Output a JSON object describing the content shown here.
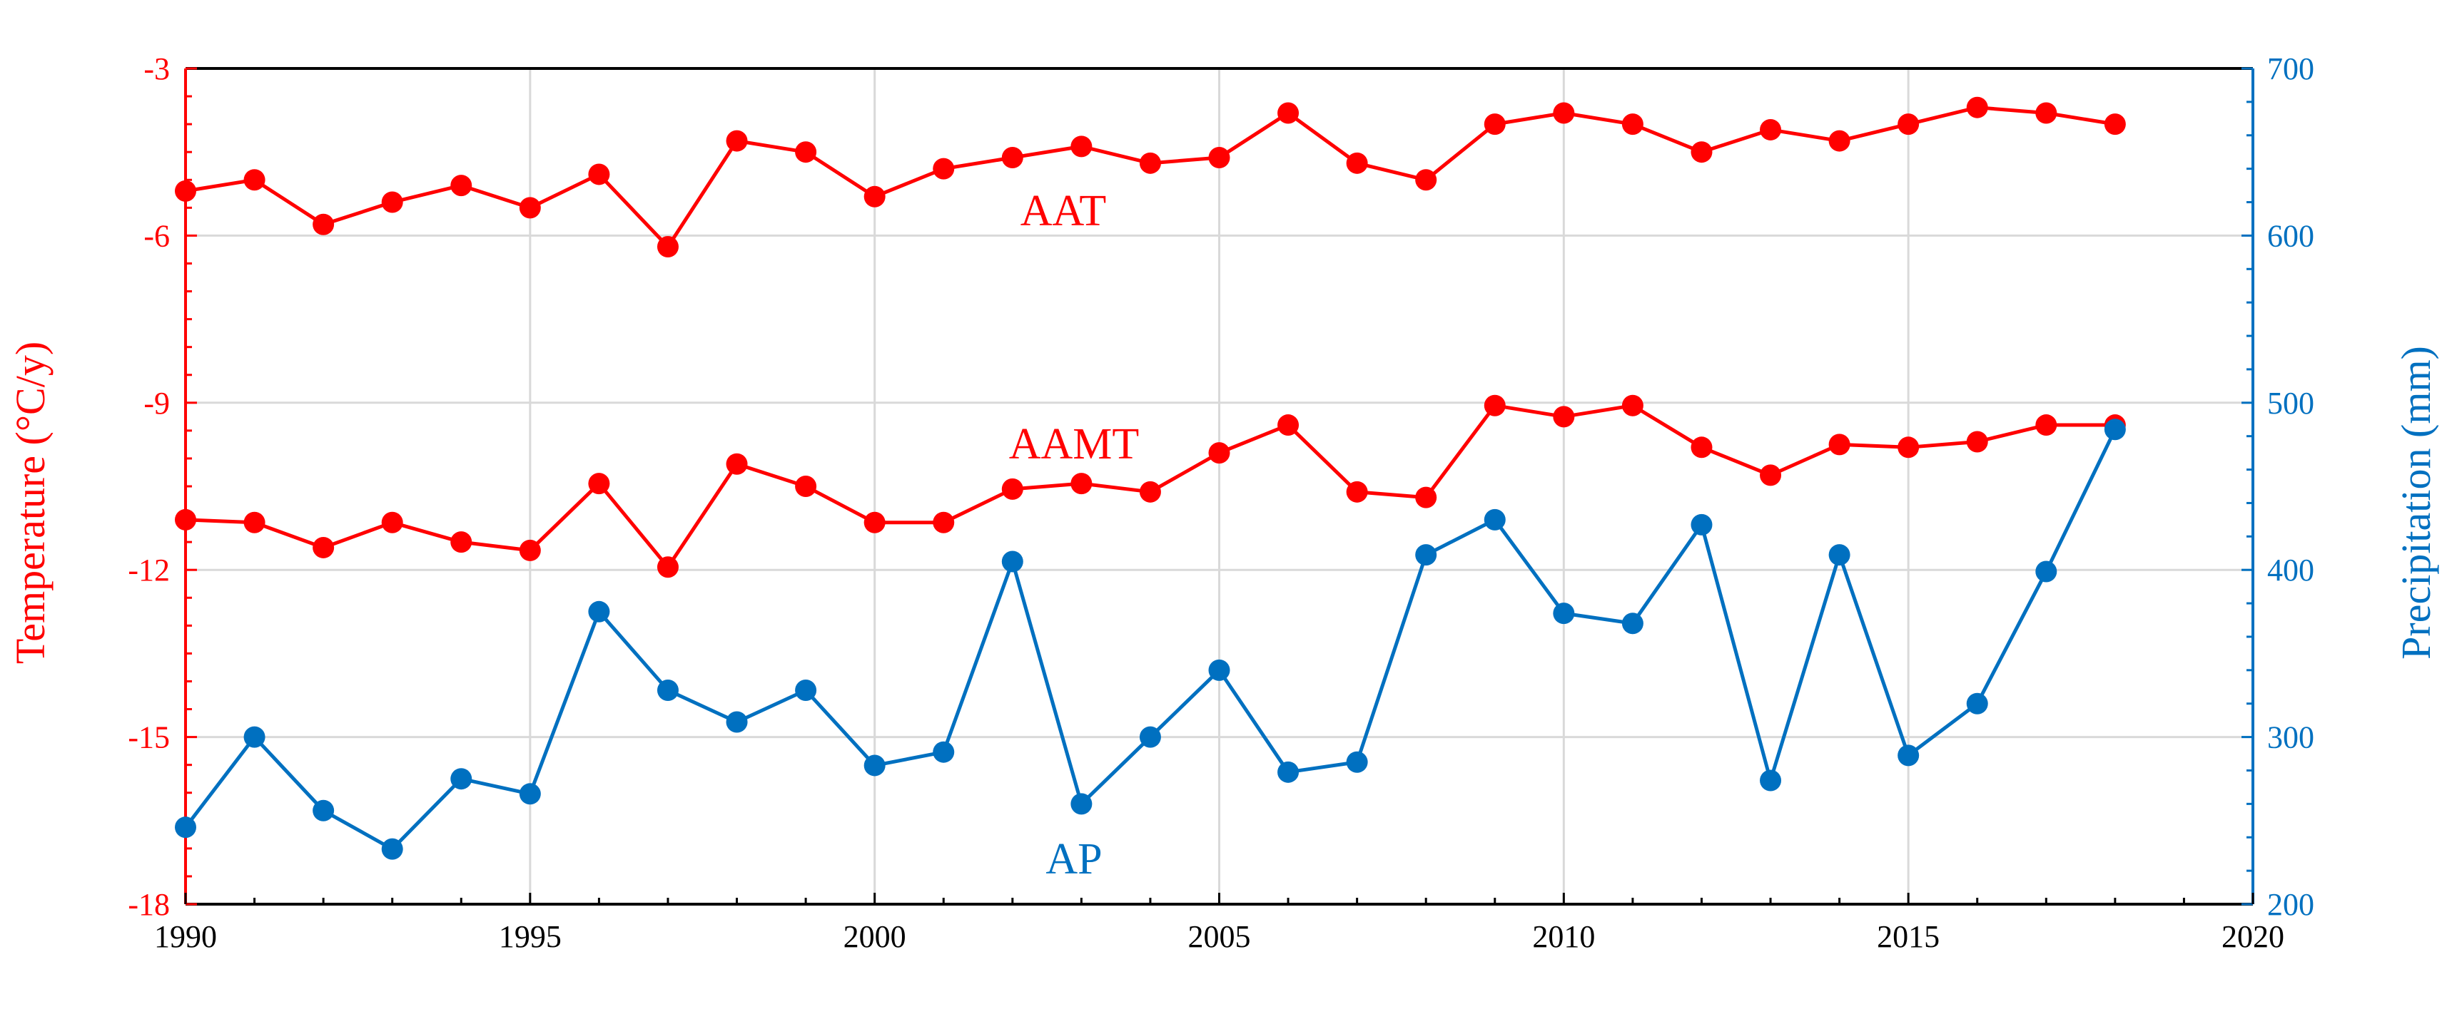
{
  "chart_data": {
    "type": "line",
    "x": [
      1990,
      1991,
      1992,
      1993,
      1994,
      1995,
      1996,
      1997,
      1998,
      1999,
      2000,
      2001,
      2002,
      2003,
      2004,
      2005,
      2006,
      2007,
      2008,
      2009,
      2010,
      2011,
      2012,
      2013,
      2014,
      2015,
      2016,
      2017,
      2018
    ],
    "xlim": [
      1990,
      2020
    ],
    "x_ticks": [
      "1990",
      "1995",
      "2000",
      "2005",
      "2010",
      "2015",
      "2020"
    ],
    "ylabel_left": "Temperature (°C/y)",
    "ylim_left": [
      -18,
      -3
    ],
    "y_ticks_left": [
      "-3",
      "-6",
      "-9",
      "-12",
      "-15",
      "-18"
    ],
    "ylabel_right": "Precipitation (mm)",
    "ylim_right": [
      200,
      700
    ],
    "y_ticks_right": [
      "700",
      "600",
      "500",
      "400",
      "300",
      "200"
    ],
    "grid": true,
    "series": [
      {
        "name": "AAT",
        "axis": "left",
        "color": "#ff0000",
        "values": [
          -5.2,
          -5.0,
          -5.8,
          -5.4,
          -5.1,
          -5.5,
          -4.9,
          -6.2,
          -4.3,
          -4.5,
          -5.3,
          -4.8,
          -4.6,
          -4.4,
          -4.7,
          -4.6,
          -3.8,
          -4.7,
          -5.0,
          -4.0,
          -3.8,
          -4.0,
          -4.5,
          -4.1,
          -4.3,
          -4.0,
          -3.7,
          -3.8,
          -4.0
        ]
      },
      {
        "name": "AAMT",
        "axis": "left",
        "color": "#ff0000",
        "values": [
          -11.1,
          -11.15,
          -11.6,
          -11.15,
          -11.5,
          -11.65,
          -10.45,
          -11.95,
          -10.1,
          -10.5,
          -11.15,
          -11.15,
          -10.55,
          -10.45,
          -10.6,
          -9.9,
          -9.4,
          -10.6,
          -10.7,
          -9.05,
          -9.25,
          -9.05,
          -9.8,
          -10.3,
          -9.75,
          -9.8,
          -9.7,
          -9.4,
          -9.4
        ]
      },
      {
        "name": "AP",
        "axis": "right",
        "color": "#0070c0",
        "values": [
          246,
          300,
          256,
          233,
          275,
          266,
          375,
          328,
          309,
          328,
          283,
          291,
          405,
          260,
          300,
          340,
          279,
          285,
          409,
          430,
          374,
          368,
          427,
          274,
          409,
          289,
          320,
          399,
          484
        ]
      }
    ]
  },
  "labels": {
    "aat": "AAT",
    "aamt": "AAMT",
    "ap": "AP"
  }
}
